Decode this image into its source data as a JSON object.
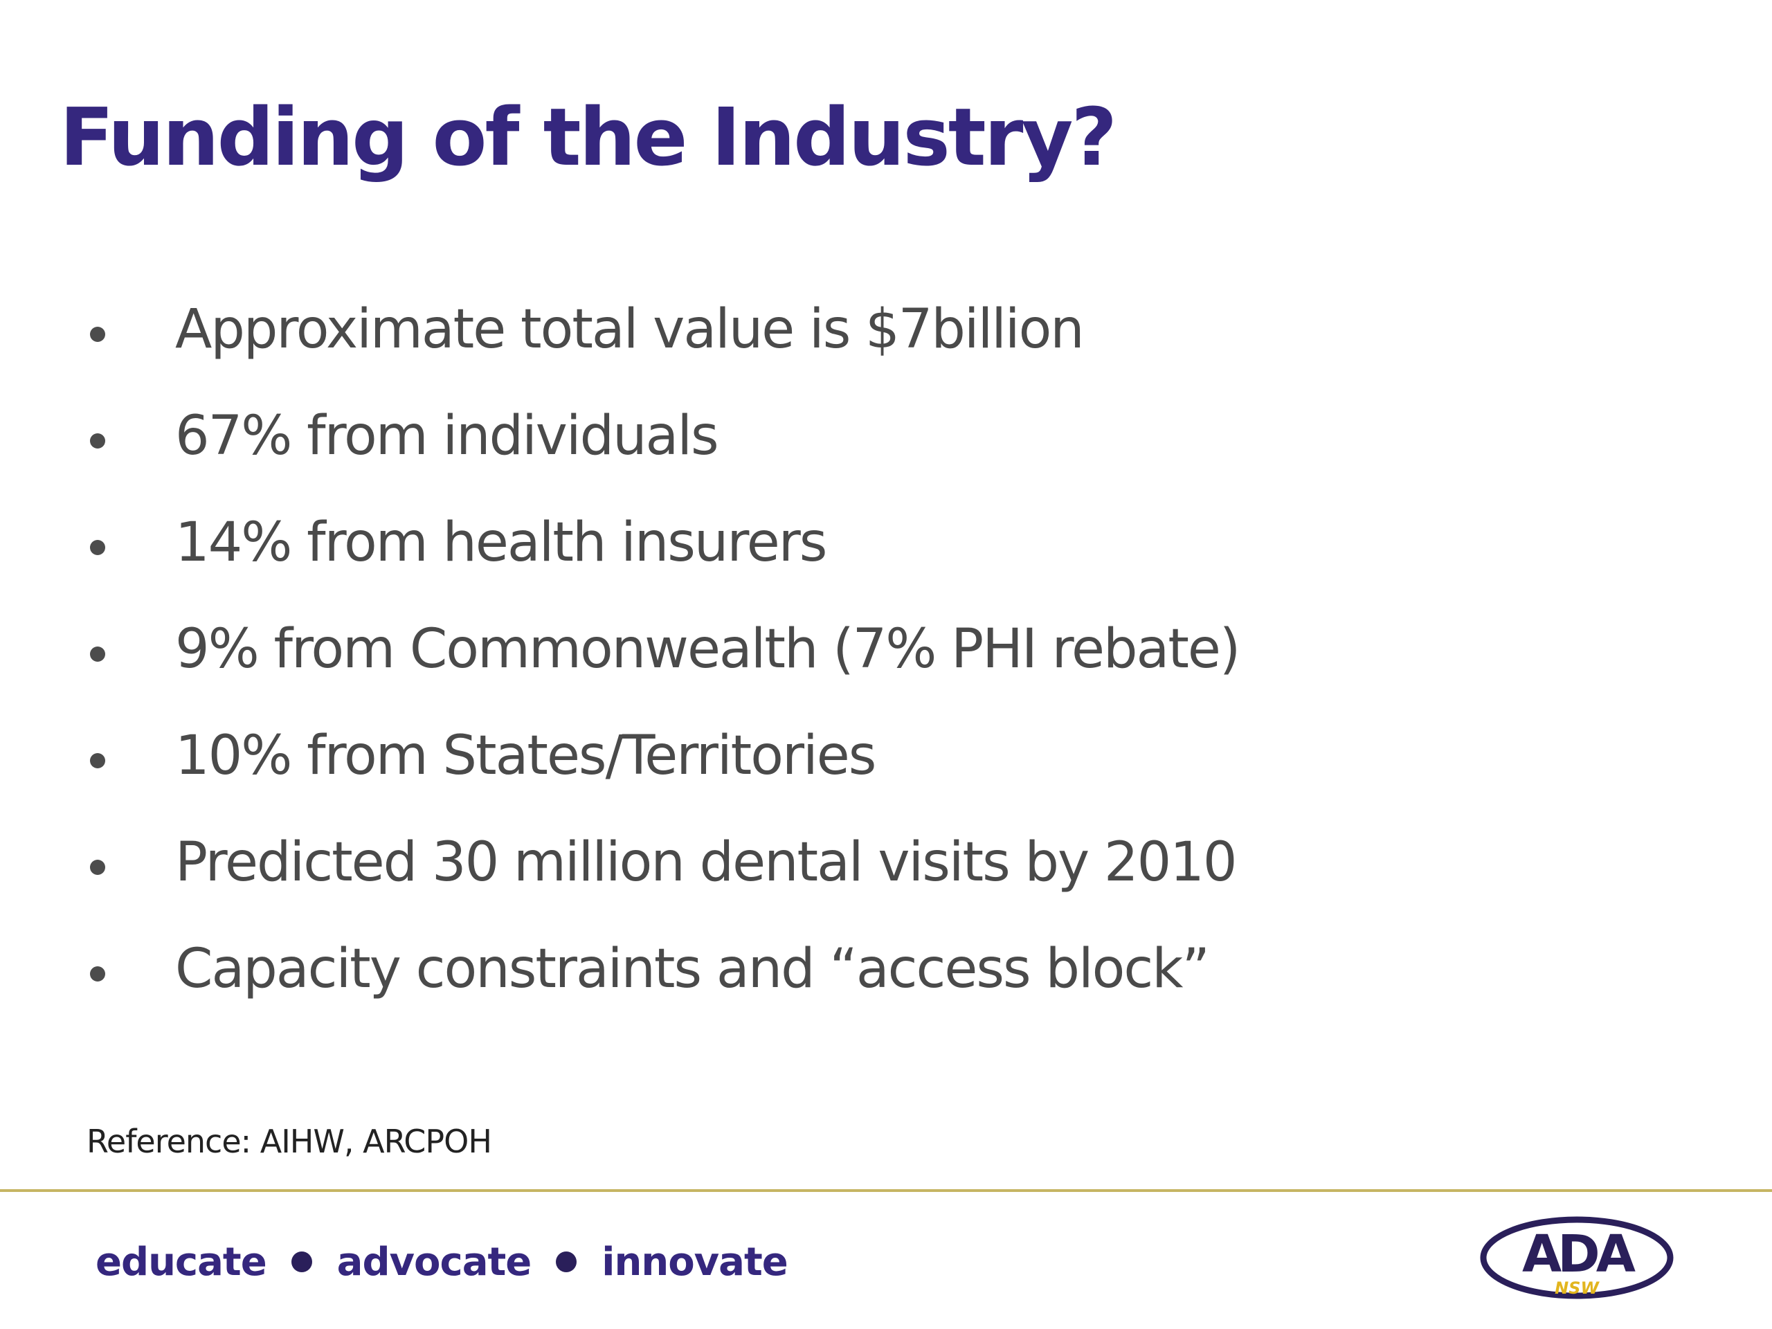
{
  "slide": {
    "title": "Funding of the Industry?",
    "bullets": [
      "Approximate total value is $7billion",
      "67% from individuals",
      "14% from health insurers",
      "9% from Commonwealth (7% PHI rebate)",
      "10% from States/Territories",
      "Predicted 30 million dental visits by 2010",
      "Capacity constraints and “access block”"
    ],
    "reference": "Reference: AIHW, ARCPOH"
  },
  "footer": {
    "tagline": [
      "educate",
      "advocate",
      "innovate"
    ],
    "logo": {
      "name": "ada-nsw-logo",
      "text": "ADA",
      "subtext": "NSW"
    }
  },
  "colors": {
    "title": "#35277e",
    "body_text": "#4a4a4a",
    "rule": "#c6b563",
    "logo_gold": "#e2b51e"
  }
}
